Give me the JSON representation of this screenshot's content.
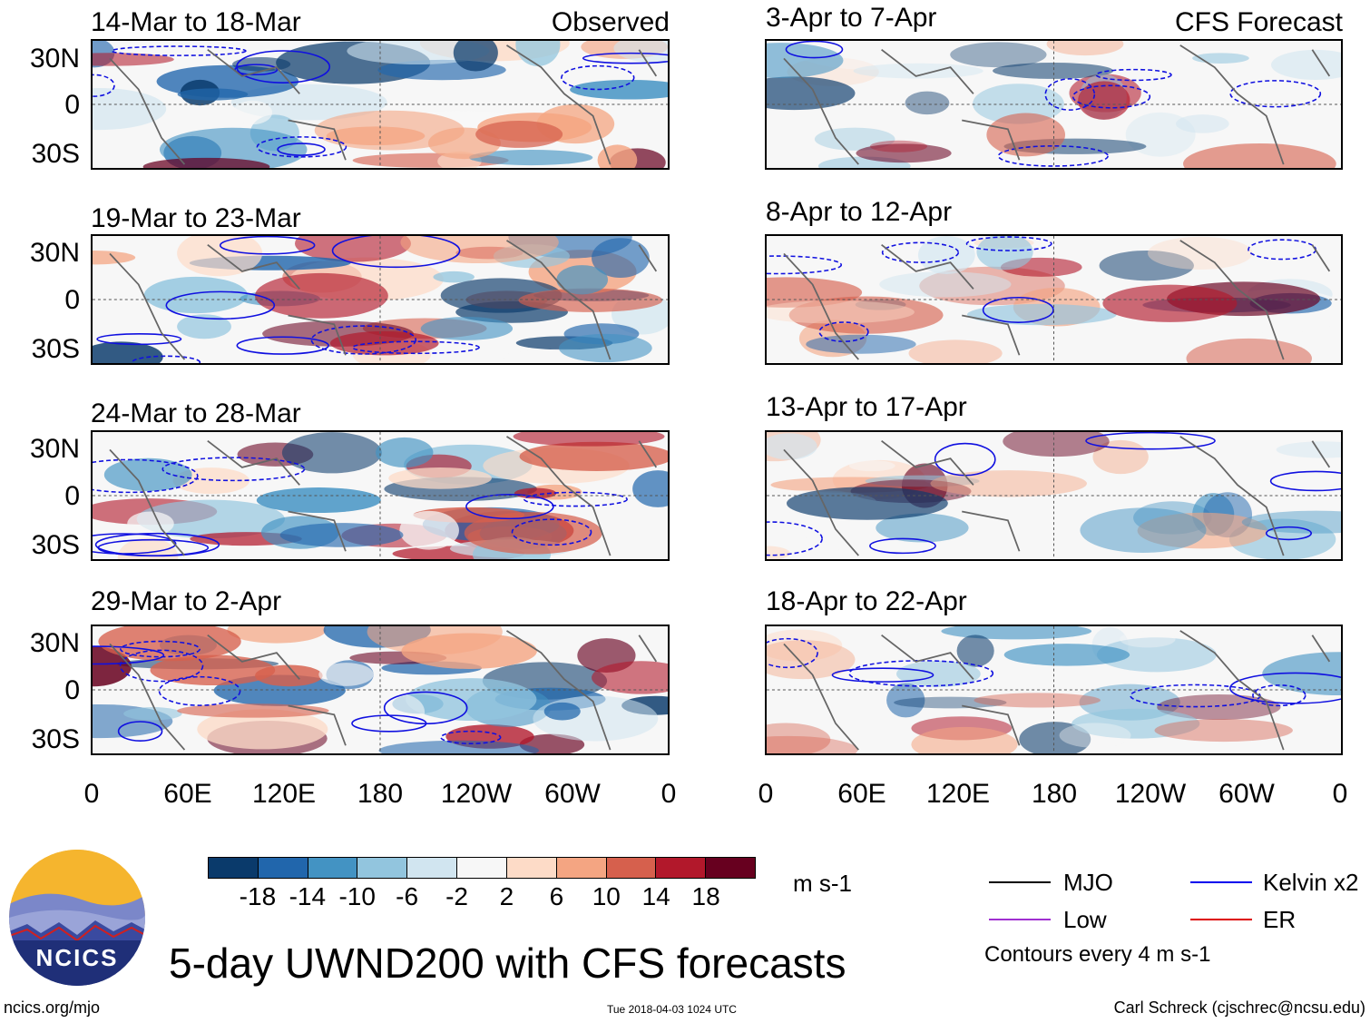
{
  "panels": {
    "observed": [
      {
        "title": "14-Mar to 18-Mar",
        "label": "Observed"
      },
      {
        "title": "19-Mar to 23-Mar"
      },
      {
        "title": "24-Mar to 28-Mar"
      },
      {
        "title": "29-Mar to 2-Apr"
      }
    ],
    "forecast": [
      {
        "title": "3-Apr to 7-Apr",
        "label": "CFS Forecast"
      },
      {
        "title": "8-Apr to 12-Apr"
      },
      {
        "title": "13-Apr to 17-Apr"
      },
      {
        "title": "18-Apr to 22-Apr"
      }
    ]
  },
  "axes": {
    "lat_labels": [
      "30N",
      "0",
      "30S"
    ],
    "lon_labels": [
      "0",
      "60E",
      "120E",
      "180",
      "120W",
      "60W",
      "0"
    ]
  },
  "colorbar": {
    "colors": [
      "#0a3a6b",
      "#2166ac",
      "#4393c3",
      "#92c5de",
      "#d1e5f0",
      "#f7f7f7",
      "#fddbc7",
      "#f4a582",
      "#d6604d",
      "#b2182b",
      "#67001f"
    ],
    "labels": [
      "-18",
      "-14",
      "-10",
      "-6",
      "-2",
      "2",
      "6",
      "10",
      "14",
      "18"
    ],
    "units": "m s-1"
  },
  "legend": {
    "items": [
      {
        "label": "MJO",
        "color": "#000000"
      },
      {
        "label": "Kelvin x2",
        "color": "#0000ee"
      },
      {
        "label": "Low",
        "color": "#a030d0"
      },
      {
        "label": "ER",
        "color": "#dd0000"
      }
    ],
    "note": "Contours every 4 m s-1"
  },
  "title": "5-day UWND200 with CFS forecasts",
  "footer": {
    "left": "ncics.org/mjo",
    "center": "Tue 2018-04-03 1024 UTC",
    "right": "Carl Schreck (cjschrec@ncsu.edu)"
  },
  "logo": {
    "text": "NCICS"
  }
}
